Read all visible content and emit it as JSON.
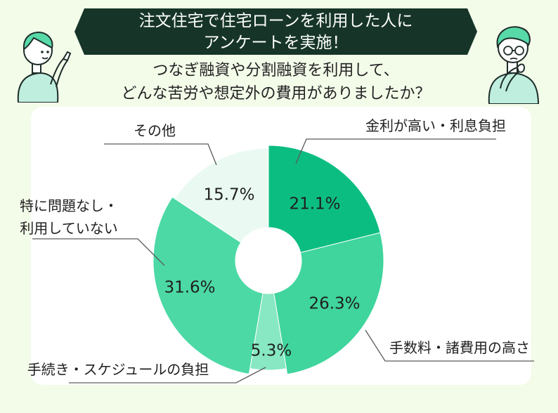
{
  "header": {
    "banner_line1": "注文住宅で住宅ローンを利用した人に",
    "banner_line2": "アンケートを実施！",
    "question_line1": "つなぎ融資や分割融資を利用して、",
    "question_line2": "どんな苦労や想定外の費用がありましたか？"
  },
  "chart_data": {
    "type": "pie",
    "donut": true,
    "slices": [
      {
        "label": "金利が高い・利息負担",
        "value": 21.1,
        "display": "21.1%",
        "color": "#0cbd82"
      },
      {
        "label": "手数料・諸費用の高さ",
        "value": 26.3,
        "display": "26.3%",
        "color": "#3fd59c"
      },
      {
        "label": "手続き・スケジュールの負担",
        "value": 5.3,
        "display": "5.3%",
        "color": "#87e8c3"
      },
      {
        "label": "特に問題なし・利用していない",
        "label_lines": [
          "特に問題なし・",
          "利用していない"
        ],
        "value": 31.6,
        "display": "31.6%",
        "color": "#4cd9a6"
      },
      {
        "label": "その他",
        "value": 15.7,
        "display": "15.7%",
        "color": "#eafaf2"
      }
    ]
  },
  "colors": {
    "banner_bg": "#163528",
    "page_bg": "#f3fbe9",
    "card_bg": "#ffffff",
    "leader_line": "#5a5a5a"
  },
  "icons": {
    "left": "pointing-person-icon",
    "right": "thinking-person-icon"
  }
}
